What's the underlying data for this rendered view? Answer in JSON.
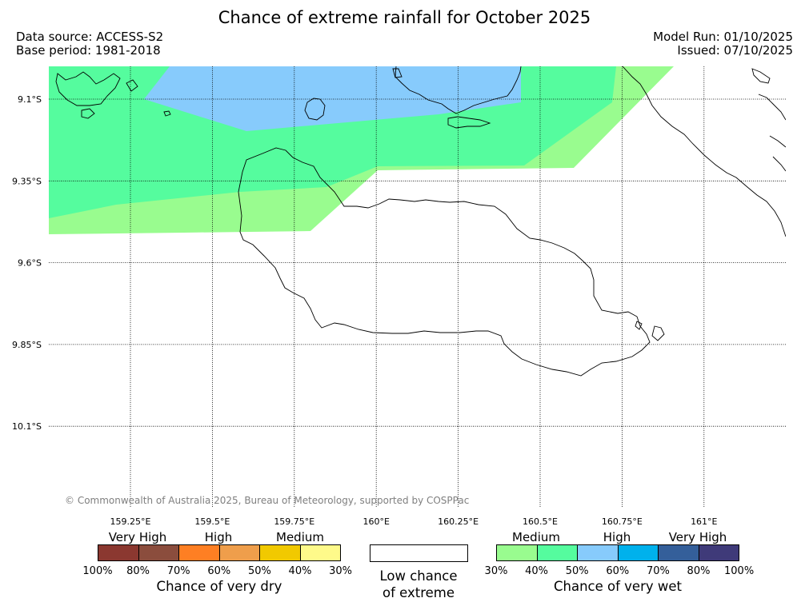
{
  "header": {
    "title": "Chance of extreme rainfall for October 2025",
    "data_source": "Data source: ACCESS-S2",
    "base_period": "Base period: 1981-2018",
    "model_run": "Model Run: 01/10/2025",
    "issued": "Issued: 07/10/2025"
  },
  "map": {
    "lat_ticks": [
      "9.1°S",
      "9.35°S",
      "9.6°S",
      "9.85°S",
      "10.1°S"
    ],
    "lon_ticks": [
      "159.25°E",
      "159.5°E",
      "159.75°E",
      "160°E",
      "160.25°E",
      "160.5°E",
      "160.75°E",
      "161°E"
    ],
    "lat_values": [
      -9.1,
      -9.35,
      -9.6,
      -9.85,
      -10.1
    ],
    "lon_values": [
      159.25,
      159.5,
      159.75,
      160.0,
      160.25,
      160.5,
      160.75,
      161.0
    ],
    "copyright": "© Commonwealth of Australia 2025, Bureau of Meteorology, supported by COSPPac",
    "zone_colors": {
      "wet_medium_30_40": "#99fc8f",
      "wet_medium_40_50": "#55fc9e",
      "wet_high_50_60": "#87cbfc"
    }
  },
  "legend": {
    "dry": {
      "categories": [
        "Very High",
        "High",
        "Medium"
      ],
      "colors": [
        "#8b3830",
        "#8b4d3d",
        "#fe7f23",
        "#ef9e4b",
        "#f1c900",
        "#fefa8a"
      ],
      "labels": [
        "100%",
        "80%",
        "70%",
        "60%",
        "50%",
        "40%",
        "30%"
      ],
      "title": "Chance of very dry"
    },
    "low": {
      "line1": "Low chance",
      "line2": "of extreme"
    },
    "wet": {
      "categories": [
        "Medium",
        "High",
        "Very High"
      ],
      "colors": [
        "#99fc8f",
        "#55fc9e",
        "#87cbfc",
        "#00b1ec",
        "#345f9a",
        "#3f3a79"
      ],
      "labels": [
        "30%",
        "40%",
        "50%",
        "60%",
        "70%",
        "80%",
        "100%"
      ],
      "title": "Chance of very wet"
    }
  }
}
